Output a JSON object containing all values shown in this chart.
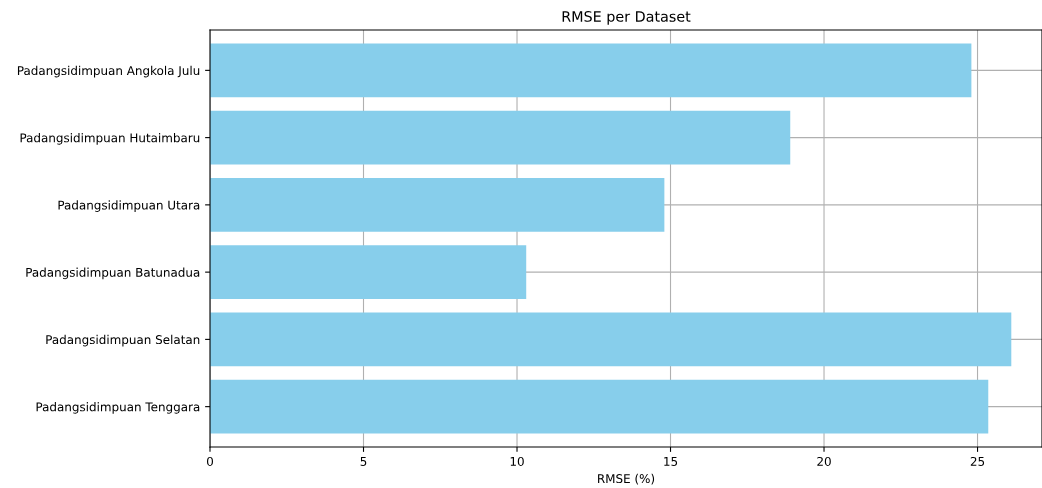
{
  "chart_data": {
    "type": "bar",
    "orientation": "horizontal",
    "title": "RMSE per Dataset",
    "xlabel": "RMSE (%)",
    "categories": [
      "Padangsidimpuan Angkola Julu",
      "Padangsidimpuan Hutaimbaru",
      "Padangsidimpuan Utara",
      "Padangsidimpuan Batunadua",
      "Padangsidimpuan Selatan",
      "Padangsidimpuan Tenggara"
    ],
    "values": [
      24.8,
      18.9,
      14.8,
      10.3,
      26.1,
      25.35
    ],
    "color": "#87ceeb",
    "xlim": [
      0,
      27.1
    ],
    "xticks": [
      0,
      5,
      10,
      15,
      20,
      25
    ],
    "grid": true
  }
}
